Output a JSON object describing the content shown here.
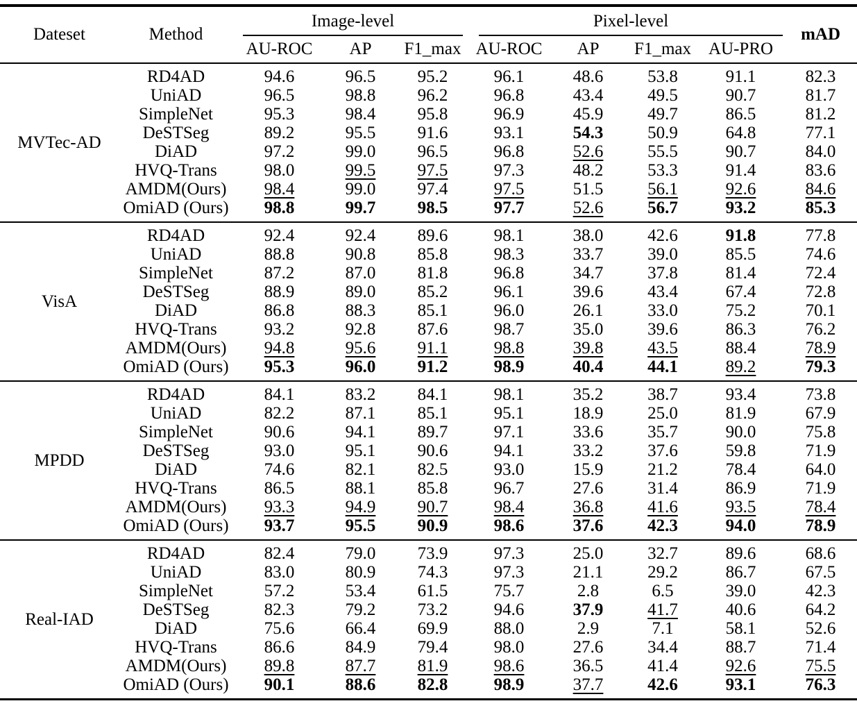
{
  "page": {
    "background": "#ffffff",
    "text_color": "#000000"
  },
  "formatting_legend": {
    "bold": "best result",
    "underline": "second-best result"
  },
  "table": {
    "header": {
      "dataset_label": "Dateset",
      "method_label": "Method",
      "image_group_label": "Image-level",
      "pixel_group_label": "Pixel-level",
      "mad_label": "mAD",
      "sub_columns": [
        {
          "name": "image-auroc",
          "label": "AU-ROC"
        },
        {
          "name": "image-ap",
          "label": "AP"
        },
        {
          "name": "image-f1max",
          "label": "F1_max"
        },
        {
          "name": "pixel-auroc",
          "label": "AU-ROC"
        },
        {
          "name": "pixel-ap",
          "label": "AP"
        },
        {
          "name": "pixel-f1max",
          "label": "F1_max"
        },
        {
          "name": "pixel-aupro",
          "label": "AU-PRO"
        },
        {
          "name": "mad",
          "label": "mAD"
        }
      ]
    },
    "blocks": [
      {
        "dataset": "MVTec-AD",
        "rows": [
          {
            "method": "RD4AD",
            "values": [
              "94.6",
              "96.5",
              "95.2",
              "96.1",
              "48.6",
              "53.8",
              "91.1",
              "82.3"
            ],
            "styles": "pppppppp"
          },
          {
            "method": "UniAD",
            "values": [
              "96.5",
              "98.8",
              "96.2",
              "96.8",
              "43.4",
              "49.5",
              "90.7",
              "81.7"
            ],
            "styles": "pppppppp"
          },
          {
            "method": "SimpleNet",
            "values": [
              "95.3",
              "98.4",
              "95.8",
              "96.9",
              "45.9",
              "49.7",
              "86.5",
              "81.2"
            ],
            "styles": "pppppppp"
          },
          {
            "method": "DeSTSeg",
            "values": [
              "89.2",
              "95.5",
              "91.6",
              "93.1",
              "54.3",
              "50.9",
              "64.8",
              "77.1"
            ],
            "styles": "ppppbppp"
          },
          {
            "method": "DiAD",
            "values": [
              "97.2",
              "99.0",
              "96.5",
              "96.8",
              "52.6",
              "55.5",
              "90.7",
              "84.0"
            ],
            "styles": "ppppuppp"
          },
          {
            "method": "HVQ-Trans",
            "values": [
              "98.0",
              "99.5",
              "97.5",
              "97.3",
              "48.2",
              "53.3",
              "91.4",
              "83.6"
            ],
            "styles": "puuppppp"
          },
          {
            "method": "AMDM(Ours)",
            "values": [
              "98.4",
              "99.0",
              "97.4",
              "97.5",
              "51.5",
              "56.1",
              "92.6",
              "84.6"
            ],
            "styles": "uppupuuu"
          },
          {
            "method": "OmiAD (Ours)",
            "values": [
              "98.8",
              "99.7",
              "98.5",
              "97.7",
              "52.6",
              "56.7",
              "93.2",
              "85.3"
            ],
            "styles": "bbbbubbb"
          }
        ]
      },
      {
        "dataset": "VisA",
        "rows": [
          {
            "method": "RD4AD",
            "values": [
              "92.4",
              "92.4",
              "89.6",
              "98.1",
              "38.0",
              "42.6",
              "91.8",
              "77.8"
            ],
            "styles": "ppppppbp"
          },
          {
            "method": "UniAD",
            "values": [
              "88.8",
              "90.8",
              "85.8",
              "98.3",
              "33.7",
              "39.0",
              "85.5",
              "74.6"
            ],
            "styles": "pppppppp"
          },
          {
            "method": "SimpleNet",
            "values": [
              "87.2",
              "87.0",
              "81.8",
              "96.8",
              "34.7",
              "37.8",
              "81.4",
              "72.4"
            ],
            "styles": "pppppppp"
          },
          {
            "method": "DeSTSeg",
            "values": [
              "88.9",
              "89.0",
              "85.2",
              "96.1",
              "39.6",
              "43.4",
              "67.4",
              "72.8"
            ],
            "styles": "pppppppp"
          },
          {
            "method": "DiAD",
            "values": [
              "86.8",
              "88.3",
              "85.1",
              "96.0",
              "26.1",
              "33.0",
              "75.2",
              "70.1"
            ],
            "styles": "pppppppp"
          },
          {
            "method": "HVQ-Trans",
            "values": [
              "93.2",
              "92.8",
              "87.6",
              "98.7",
              "35.0",
              "39.6",
              "86.3",
              "76.2"
            ],
            "styles": "pppppppp"
          },
          {
            "method": "AMDM(Ours)",
            "values": [
              "94.8",
              "95.6",
              "91.1",
              "98.8",
              "39.8",
              "43.5",
              "88.4",
              "78.9"
            ],
            "styles": "uuuuuupu"
          },
          {
            "method": "OmiAD (Ours)",
            "values": [
              "95.3",
              "96.0",
              "91.2",
              "98.9",
              "40.4",
              "44.1",
              "89.2",
              "79.3"
            ],
            "styles": "bbbbbbub"
          }
        ]
      },
      {
        "dataset": "MPDD",
        "rows": [
          {
            "method": "RD4AD",
            "values": [
              "84.1",
              "83.2",
              "84.1",
              "98.1",
              "35.2",
              "38.7",
              "93.4",
              "73.8"
            ],
            "styles": "pppppppp"
          },
          {
            "method": "UniAD",
            "values": [
              "82.2",
              "87.1",
              "85.1",
              "95.1",
              "18.9",
              "25.0",
              "81.9",
              "67.9"
            ],
            "styles": "pppppppp"
          },
          {
            "method": "SimpleNet",
            "values": [
              "90.6",
              "94.1",
              "89.7",
              "97.1",
              "33.6",
              "35.7",
              "90.0",
              "75.8"
            ],
            "styles": "pppppppp"
          },
          {
            "method": "DeSTSeg",
            "values": [
              "93.0",
              "95.1",
              "90.6",
              "94.1",
              "33.2",
              "37.6",
              "59.8",
              "71.9"
            ],
            "styles": "pppppppp"
          },
          {
            "method": "DiAD",
            "values": [
              "74.6",
              "82.1",
              "82.5",
              "93.0",
              "15.9",
              "21.2",
              "78.4",
              "64.0"
            ],
            "styles": "pppppppp"
          },
          {
            "method": "HVQ-Trans",
            "values": [
              "86.5",
              "88.1",
              "85.8",
              "96.7",
              "27.6",
              "31.4",
              "86.9",
              "71.9"
            ],
            "styles": "pppppppp"
          },
          {
            "method": "AMDM(Ours)",
            "values": [
              "93.3",
              "94.9",
              "90.7",
              "98.4",
              "36.8",
              "41.6",
              "93.5",
              "78.4"
            ],
            "styles": "uuuuuuuu"
          },
          {
            "method": "OmiAD (Ours)",
            "values": [
              "93.7",
              "95.5",
              "90.9",
              "98.6",
              "37.6",
              "42.3",
              "94.0",
              "78.9"
            ],
            "styles": "bbbbbbbb"
          }
        ]
      },
      {
        "dataset": "Real-IAD",
        "rows": [
          {
            "method": "RD4AD",
            "values": [
              "82.4",
              "79.0",
              "73.9",
              "97.3",
              "25.0",
              "32.7",
              "89.6",
              "68.6"
            ],
            "styles": "pppppppp"
          },
          {
            "method": "UniAD",
            "values": [
              "83.0",
              "80.9",
              "74.3",
              "97.3",
              "21.1",
              "29.2",
              "86.7",
              "67.5"
            ],
            "styles": "pppppppp"
          },
          {
            "method": "SimpleNet",
            "values": [
              "57.2",
              "53.4",
              "61.5",
              "75.7",
              "2.8",
              "6.5",
              "39.0",
              "42.3"
            ],
            "styles": "pppppppp"
          },
          {
            "method": "DeSTSeg",
            "values": [
              "82.3",
              "79.2",
              "73.2",
              "94.6",
              "37.9",
              "41.7",
              "40.6",
              "64.2"
            ],
            "styles": "ppppbupp"
          },
          {
            "method": "DiAD",
            "values": [
              "75.6",
              "66.4",
              "69.9",
              "88.0",
              "2.9",
              "7.1",
              "58.1",
              "52.6"
            ],
            "styles": "pppppppp"
          },
          {
            "method": "HVQ-Trans",
            "values": [
              "86.6",
              "84.9",
              "79.4",
              "98.0",
              "27.6",
              "34.4",
              "88.7",
              "71.4"
            ],
            "styles": "pppppppp"
          },
          {
            "method": "AMDM(Ours)",
            "values": [
              "89.8",
              "87.7",
              "81.9",
              "98.6",
              "36.5",
              "41.4",
              "92.6",
              "75.5"
            ],
            "styles": "uuuuppuu"
          },
          {
            "method": "OmiAD (Ours)",
            "values": [
              "90.1",
              "88.6",
              "82.8",
              "98.9",
              "37.7",
              "42.6",
              "93.1",
              "76.3"
            ],
            "styles": "bbbbubbb"
          }
        ]
      }
    ]
  }
}
